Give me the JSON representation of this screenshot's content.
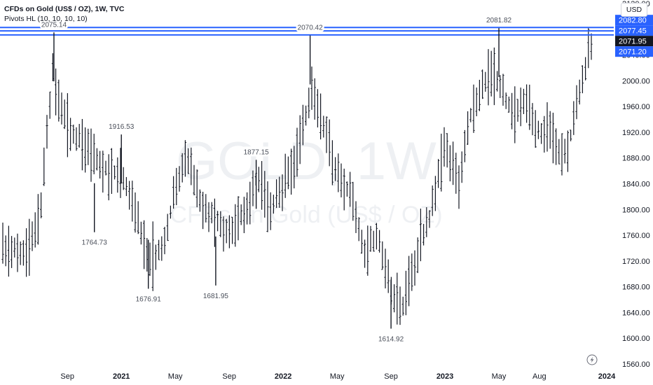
{
  "header": {
    "symbol_line": "CFDs on Gold (US$ / OZ), 1W, TVC",
    "indicator_line": "Pivots HL (10, 10, 10, 10)",
    "currency": "USD"
  },
  "watermark": {
    "symbol": "GOLD, 1W",
    "description": "CFDs on Gold (US$ / OZ)"
  },
  "colors": {
    "bars": "#131722",
    "level_lines": "#2962ff",
    "tag_blue": "#2962ff",
    "tag_black": "#131722",
    "grid_text": "#131722"
  },
  "icons": [
    "lightning-icon"
  ],
  "chart_data": {
    "type": "ohlc",
    "timeframe": "1W",
    "ylim": [
      1560,
      2120
    ],
    "y_ticks": [
      2120,
      2080,
      2040,
      2000,
      1960,
      1920,
      1880,
      1840,
      1800,
      1760,
      1720,
      1680,
      1640,
      1600,
      1560
    ],
    "x_labels": [
      {
        "label": "Sep",
        "date": "2020-09",
        "bold": false
      },
      {
        "label": "2021",
        "date": "2021-01",
        "bold": true
      },
      {
        "label": "May",
        "date": "2021-05",
        "bold": false
      },
      {
        "label": "Sep",
        "date": "2021-09",
        "bold": false
      },
      {
        "label": "2022",
        "date": "2022-01",
        "bold": true
      },
      {
        "label": "May",
        "date": "2022-05",
        "bold": false
      },
      {
        "label": "Sep",
        "date": "2022-09",
        "bold": false
      },
      {
        "label": "2023",
        "date": "2023-01",
        "bold": true
      },
      {
        "label": "May",
        "date": "2023-05",
        "bold": false
      },
      {
        "label": "Aug",
        "date": "2023-08",
        "bold": false
      },
      {
        "label": "2024",
        "date": "2024-01",
        "bold": true
      }
    ],
    "x_range": [
      "2020-04",
      "2024-01"
    ],
    "series_shape": [
      [
        "2020-04",
        1740
      ],
      [
        "2020-06",
        1730
      ],
      [
        "2020-07",
        1800
      ],
      [
        "2020-08",
        2040
      ],
      [
        "2020-08",
        1990
      ],
      [
        "2020-09",
        1930
      ],
      [
        "2020-10",
        1905
      ],
      [
        "2020-11",
        1880
      ],
      [
        "2020-12",
        1860
      ],
      [
        "2021-01",
        1850
      ],
      [
        "2021-02",
        1800
      ],
      [
        "2021-03",
        1720
      ],
      [
        "2021-04",
        1740
      ],
      [
        "2021-05",
        1830
      ],
      [
        "2021-06",
        1880
      ],
      [
        "2021-07",
        1800
      ],
      [
        "2021-08",
        1790
      ],
      [
        "2021-09",
        1760
      ],
      [
        "2021-10",
        1790
      ],
      [
        "2021-11",
        1850
      ],
      [
        "2021-12",
        1800
      ],
      [
        "2022-01",
        1830
      ],
      [
        "2022-02",
        1880
      ],
      [
        "2022-03",
        1980
      ],
      [
        "2022-04",
        1930
      ],
      [
        "2022-05",
        1850
      ],
      [
        "2022-06",
        1830
      ],
      [
        "2022-07",
        1740
      ],
      [
        "2022-08",
        1760
      ],
      [
        "2022-09",
        1670
      ],
      [
        "2022-10",
        1650
      ],
      [
        "2022-11",
        1740
      ],
      [
        "2022-12",
        1800
      ],
      [
        "2023-01",
        1900
      ],
      [
        "2023-02",
        1840
      ],
      [
        "2023-03",
        1960
      ],
      [
        "2023-04",
        2000
      ],
      [
        "2023-05",
        2000
      ],
      [
        "2023-06",
        1950
      ],
      [
        "2023-07",
        1960
      ],
      [
        "2023-08",
        1920
      ],
      [
        "2023-09",
        1910
      ],
      [
        "2023-10",
        1880
      ],
      [
        "2023-11",
        1990
      ],
      [
        "2023-12",
        2072
      ]
    ],
    "pivots": [
      {
        "label": "2075.14",
        "date": "2020-08",
        "price": 2075.14,
        "type": "high"
      },
      {
        "label": "1764.73",
        "date": "2020-11",
        "price": 1764.73,
        "type": "low"
      },
      {
        "label": "1916.53",
        "date": "2021-01",
        "price": 1916.53,
        "type": "high"
      },
      {
        "label": "1676.91",
        "date": "2021-03",
        "price": 1676.91,
        "type": "low"
      },
      {
        "label": "1681.95",
        "date": "2021-08",
        "price": 1681.95,
        "type": "low"
      },
      {
        "label": "1877.15",
        "date": "2021-11",
        "price": 1877.15,
        "type": "high"
      },
      {
        "label": "2070.42",
        "date": "2022-03",
        "price": 2070.42,
        "type": "high"
      },
      {
        "label": "1614.92",
        "date": "2022-09",
        "price": 1614.92,
        "type": "low"
      },
      {
        "label": "2081.82",
        "date": "2023-05",
        "price": 2081.82,
        "type": "high"
      }
    ],
    "level_lines": [
      2082.8,
      2077.45,
      2071.2
    ],
    "price_tags": [
      {
        "label": "2082.80",
        "price": 2082.8,
        "style": "blue"
      },
      {
        "label": "2077.45",
        "price": 2077.45,
        "style": "blue"
      },
      {
        "label": "2071.95",
        "price": 2071.95,
        "style": "black"
      },
      {
        "label": "2071.20",
        "price": 2071.2,
        "style": "blue"
      }
    ],
    "last_price": 2071.95
  }
}
